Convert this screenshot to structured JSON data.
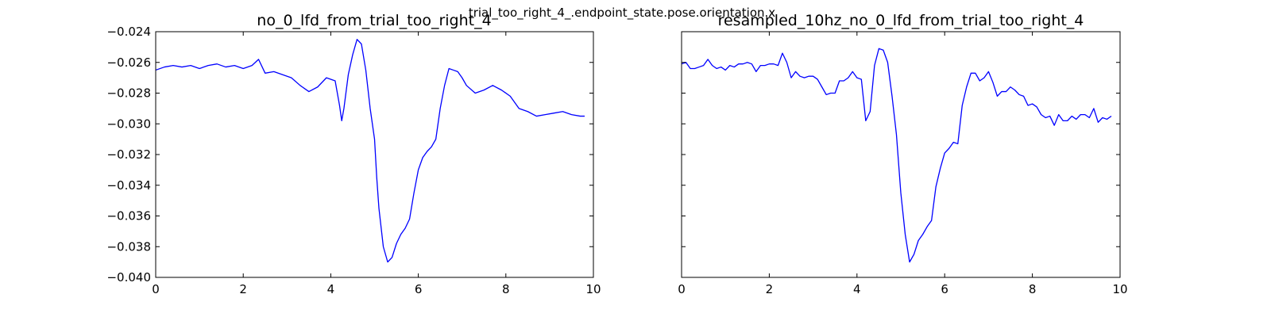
{
  "figure": {
    "suptitle": "trial_too_right_4_.endpoint_state.pose.orientation.x"
  },
  "colors": {
    "series": "#0000ff"
  },
  "chart_data": [
    {
      "type": "line",
      "title": "no_0_lfd_from_trial_too_right_4",
      "xlim": [
        0,
        10
      ],
      "ylim": [
        -0.04,
        -0.024
      ],
      "x_ticks": [
        0,
        2,
        4,
        6,
        8,
        10
      ],
      "x_tick_labels": [
        "0",
        "2",
        "4",
        "6",
        "8",
        "10"
      ],
      "y_ticks": [
        -0.024,
        -0.026,
        -0.028,
        -0.03,
        -0.032,
        -0.034,
        -0.036,
        -0.038,
        -0.04
      ],
      "y_tick_labels": [
        "−0.024",
        "−0.026",
        "−0.028",
        "−0.030",
        "−0.032",
        "−0.034",
        "−0.036",
        "−0.038",
        "−0.040"
      ],
      "series": [
        {
          "x": [
            0.0,
            0.2,
            0.4,
            0.6,
            0.8,
            1.0,
            1.2,
            1.4,
            1.6,
            1.8,
            2.0,
            2.2,
            2.35,
            2.5,
            2.7,
            2.9,
            3.1,
            3.3,
            3.5,
            3.7,
            3.9,
            4.1,
            4.2,
            4.25,
            4.3,
            4.4,
            4.5,
            4.6,
            4.7,
            4.8,
            4.9,
            5.0,
            5.05,
            5.1,
            5.2,
            5.3,
            5.4,
            5.5,
            5.6,
            5.7,
            5.8,
            5.9,
            6.0,
            6.1,
            6.2,
            6.3,
            6.4,
            6.5,
            6.6,
            6.7,
            6.8,
            6.9,
            7.0,
            7.1,
            7.3,
            7.5,
            7.7,
            7.9,
            8.1,
            8.3,
            8.5,
            8.7,
            8.9,
            9.1,
            9.3,
            9.5,
            9.7,
            9.8
          ],
          "y": [
            -0.0265,
            -0.0263,
            -0.0262,
            -0.0263,
            -0.0262,
            -0.0264,
            -0.0262,
            -0.0261,
            -0.0263,
            -0.0262,
            -0.0264,
            -0.0262,
            -0.0258,
            -0.0267,
            -0.0266,
            -0.0268,
            -0.027,
            -0.0275,
            -0.0279,
            -0.0276,
            -0.027,
            -0.0272,
            -0.0288,
            -0.0298,
            -0.029,
            -0.0268,
            -0.0255,
            -0.0245,
            -0.0248,
            -0.0265,
            -0.029,
            -0.031,
            -0.0335,
            -0.0355,
            -0.038,
            -0.039,
            -0.0387,
            -0.0378,
            -0.0372,
            -0.0368,
            -0.0362,
            -0.0345,
            -0.033,
            -0.0322,
            -0.0318,
            -0.0315,
            -0.031,
            -0.029,
            -0.0275,
            -0.0264,
            -0.0265,
            -0.0266,
            -0.027,
            -0.0275,
            -0.028,
            -0.0278,
            -0.0275,
            -0.0278,
            -0.0282,
            -0.029,
            -0.0292,
            -0.0295,
            -0.0294,
            -0.0293,
            -0.0292,
            -0.0294,
            -0.0295,
            -0.0295
          ]
        }
      ]
    },
    {
      "type": "line",
      "title": "resampled_10hz_no_0_lfd_from_trial_too_right_4",
      "xlim": [
        0,
        10
      ],
      "ylim": [
        -0.04,
        -0.024
      ],
      "x_ticks": [
        0,
        2,
        4,
        6,
        8,
        10
      ],
      "x_tick_labels": [
        "0",
        "2",
        "4",
        "6",
        "8",
        "10"
      ],
      "y_ticks": [
        -0.024,
        -0.026,
        -0.028,
        -0.03,
        -0.032,
        -0.034,
        -0.036,
        -0.038,
        -0.04
      ],
      "series": [
        {
          "x": [
            0.0,
            0.1,
            0.2,
            0.3,
            0.4,
            0.5,
            0.6,
            0.7,
            0.8,
            0.9,
            1.0,
            1.1,
            1.2,
            1.3,
            1.4,
            1.5,
            1.6,
            1.7,
            1.8,
            1.9,
            2.0,
            2.1,
            2.2,
            2.3,
            2.4,
            2.5,
            2.6,
            2.7,
            2.8,
            2.9,
            3.0,
            3.1,
            3.2,
            3.3,
            3.4,
            3.5,
            3.6,
            3.7,
            3.8,
            3.9,
            4.0,
            4.1,
            4.2,
            4.3,
            4.4,
            4.5,
            4.6,
            4.7,
            4.8,
            4.9,
            5.0,
            5.1,
            5.2,
            5.3,
            5.4,
            5.5,
            5.6,
            5.7,
            5.8,
            5.9,
            6.0,
            6.1,
            6.2,
            6.3,
            6.4,
            6.5,
            6.6,
            6.7,
            6.8,
            6.9,
            7.0,
            7.1,
            7.2,
            7.3,
            7.4,
            7.5,
            7.6,
            7.7,
            7.8,
            7.9,
            8.0,
            8.1,
            8.2,
            8.3,
            8.4,
            8.5,
            8.6,
            8.7,
            8.8,
            8.9,
            9.0,
            9.1,
            9.2,
            9.3,
            9.4,
            9.5,
            9.6,
            9.7,
            9.8
          ],
          "y": [
            -0.0261,
            -0.026,
            -0.0264,
            -0.0264,
            -0.0263,
            -0.0262,
            -0.0258,
            -0.0262,
            -0.0264,
            -0.0263,
            -0.0265,
            -0.0262,
            -0.0263,
            -0.0261,
            -0.0261,
            -0.026,
            -0.0261,
            -0.0266,
            -0.0262,
            -0.0262,
            -0.0261,
            -0.0261,
            -0.0262,
            -0.0254,
            -0.026,
            -0.027,
            -0.0266,
            -0.0269,
            -0.027,
            -0.0269,
            -0.0269,
            -0.0271,
            -0.0276,
            -0.0281,
            -0.028,
            -0.028,
            -0.0272,
            -0.0272,
            -0.027,
            -0.0266,
            -0.027,
            -0.0271,
            -0.0298,
            -0.0292,
            -0.0262,
            -0.0251,
            -0.0252,
            -0.026,
            -0.0282,
            -0.0307,
            -0.0345,
            -0.0372,
            -0.039,
            -0.0385,
            -0.0376,
            -0.0372,
            -0.0367,
            -0.0363,
            -0.0341,
            -0.0329,
            -0.0319,
            -0.0316,
            -0.0312,
            -0.0313,
            -0.0288,
            -0.0276,
            -0.0267,
            -0.0267,
            -0.0272,
            -0.027,
            -0.0266,
            -0.0273,
            -0.0282,
            -0.0279,
            -0.0279,
            -0.0276,
            -0.0278,
            -0.0281,
            -0.0282,
            -0.0288,
            -0.0287,
            -0.0289,
            -0.0294,
            -0.0296,
            -0.0295,
            -0.0301,
            -0.0294,
            -0.0298,
            -0.0298,
            -0.0295,
            -0.0297,
            -0.0294,
            -0.0294,
            -0.0296,
            -0.029,
            -0.0299,
            -0.0296,
            -0.0297,
            -0.0295
          ]
        }
      ]
    }
  ]
}
